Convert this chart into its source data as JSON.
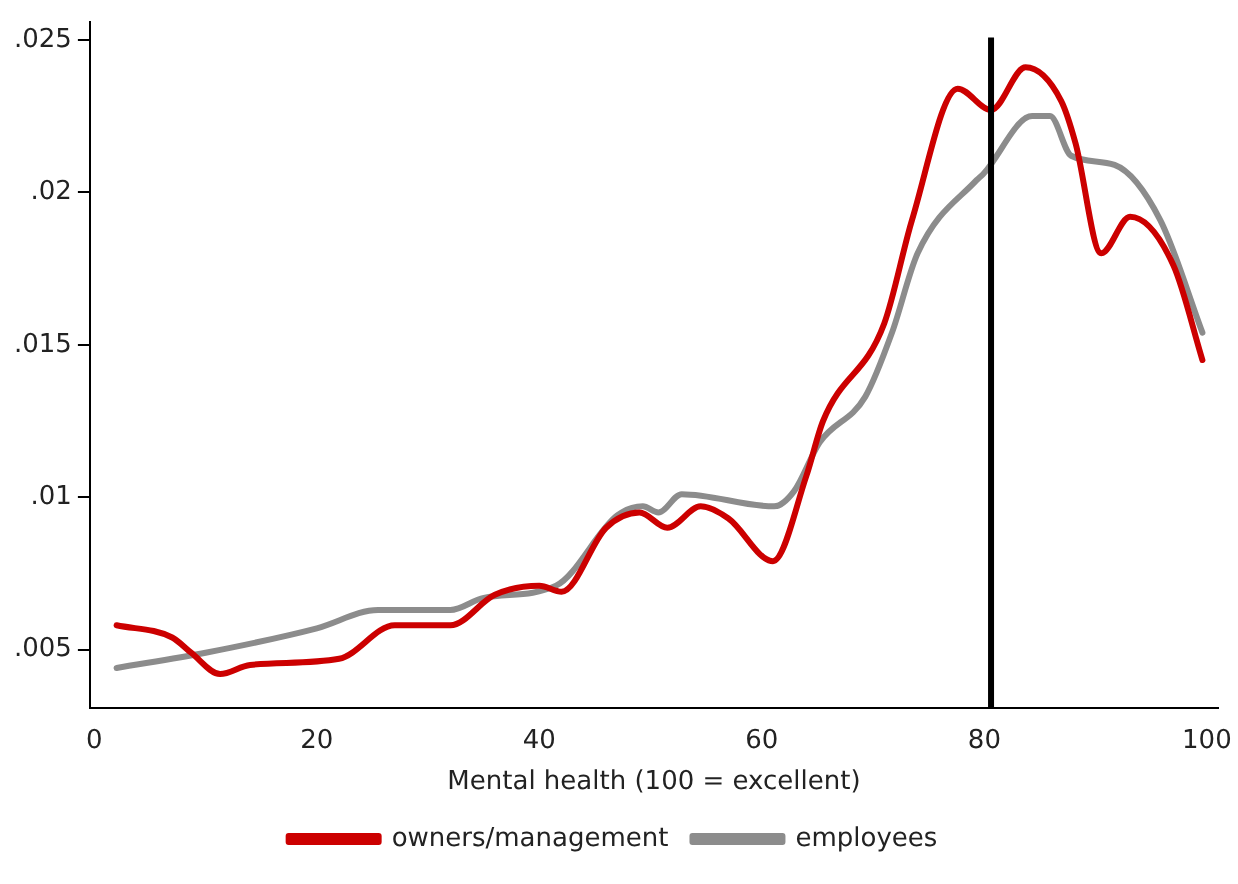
{
  "chart_data": {
    "type": "line",
    "xlabel": "Mental health (100 = excellent)",
    "xlim": [
      -0.4,
      101
    ],
    "xticks": [
      0,
      20,
      40,
      60,
      80,
      100
    ],
    "ylim": [
      0.0031,
      0.0256
    ],
    "yticks": [
      {
        "value": 0.005,
        "label": ".005"
      },
      {
        "value": 0.01,
        "label": ".01"
      },
      {
        "value": 0.015,
        "label": ".015"
      },
      {
        "value": 0.02,
        "label": ".02"
      },
      {
        "value": 0.025,
        "label": ".025"
      }
    ],
    "grid": false,
    "legend": "bottom",
    "marker": "none",
    "line_style": "solid",
    "ref_lines": [
      {
        "axis": "x",
        "value": 80.6,
        "color": "#000000"
      }
    ],
    "series": [
      {
        "name": "owners/management",
        "color": "#cc0000",
        "x": [
          2,
          7,
          8.7,
          11.3,
          14,
          22,
          27,
          32,
          36,
          40,
          42,
          46,
          49,
          51.5,
          54.5,
          57,
          61,
          64,
          65.5,
          71,
          73.5,
          77.6,
          80.6,
          83.7,
          86.9,
          88.2,
          90.5,
          93.1,
          97,
          99.6
        ],
        "values": [
          0.0058,
          0.0054,
          0.0049,
          0.0042,
          0.0045,
          0.0047,
          0.0058,
          0.0058,
          0.0068,
          0.0071,
          0.0069,
          0.009,
          0.0095,
          0.009,
          0.0097,
          0.0093,
          0.0079,
          0.0107,
          0.0125,
          0.0157,
          0.0191,
          0.0234,
          0.0227,
          0.0241,
          0.023,
          0.0216,
          0.018,
          0.0192,
          0.0176,
          0.0145
        ]
      },
      {
        "name": "employees",
        "color": "#8c8c8c",
        "x": [
          2,
          10,
          20,
          25.5,
          32,
          35,
          41.5,
          47,
          49.3,
          50.7,
          52.8,
          61.1,
          62.9,
          65.2,
          69.3,
          71.7,
          74,
          79.3,
          79.9,
          84.3,
          85.9,
          87.8,
          91.7,
          95.8,
          99.6
        ],
        "values": [
          0.0044,
          0.0049,
          0.0057,
          0.0063,
          0.0063,
          0.0067,
          0.0071,
          0.0094,
          0.0097,
          0.0095,
          0.0101,
          0.0097,
          0.0102,
          0.0118,
          0.0133,
          0.0154,
          0.018,
          0.0204,
          0.0206,
          0.0225,
          0.0225,
          0.0212,
          0.0209,
          0.0191,
          0.0154
        ]
      }
    ]
  }
}
